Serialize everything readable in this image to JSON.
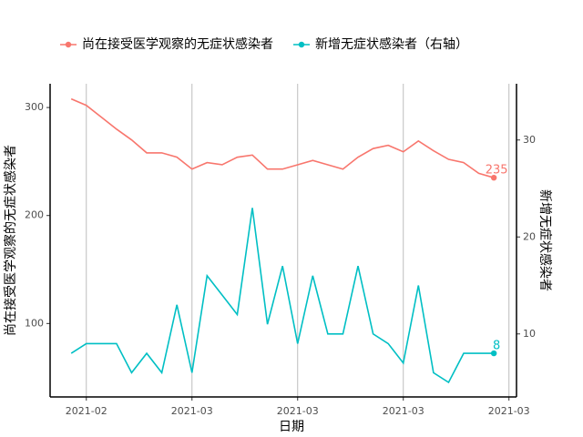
{
  "chart_data": {
    "type": "line",
    "x_label": "日期",
    "y_label": "尚在接受医学观察的无症状感染者",
    "y2_label": "新增无症状感染者",
    "x": [
      0,
      1,
      2,
      3,
      4,
      5,
      6,
      7,
      8,
      9,
      10,
      11,
      12,
      13,
      14,
      15,
      16,
      17,
      18,
      19,
      20,
      21,
      22,
      23,
      24,
      25,
      26,
      27,
      28
    ],
    "xlim": [
      -1.4,
      29.5
    ],
    "xticks": [
      {
        "value": 1,
        "label": "2021-02"
      },
      {
        "value": 8,
        "label": "2021-03"
      },
      {
        "value": 15,
        "label": "2021-03"
      },
      {
        "value": 22,
        "label": "2021-03"
      },
      {
        "value": 29,
        "label": "2021-03"
      }
    ],
    "ylim": [
      32,
      322
    ],
    "yticks": [
      100,
      200,
      300
    ],
    "y2lim": [
      3.5,
      35.8
    ],
    "y2ticks": [
      10,
      20,
      30
    ],
    "grid": "x",
    "legend": "top",
    "series": [
      {
        "name": "尚在接受医学观察的无症状感染者",
        "color": "#F8766D",
        "values": [
          308,
          302,
          291,
          280,
          270,
          258,
          258,
          254,
          243,
          249,
          247,
          254,
          256,
          243,
          243,
          247,
          251,
          247,
          243,
          254,
          262,
          265,
          259,
          269,
          260,
          252,
          249,
          239,
          235
        ]
      },
      {
        "name": "新增无症状感染者（右轴）",
        "color": "#00BFC4",
        "axis": "y2",
        "values": [
          8,
          9,
          9,
          9,
          6,
          8,
          6,
          13,
          6,
          16,
          14,
          12,
          23,
          11,
          17,
          9,
          16,
          10,
          10,
          17,
          10,
          9,
          7,
          15,
          6,
          5,
          8,
          8,
          8
        ]
      }
    ]
  }
}
